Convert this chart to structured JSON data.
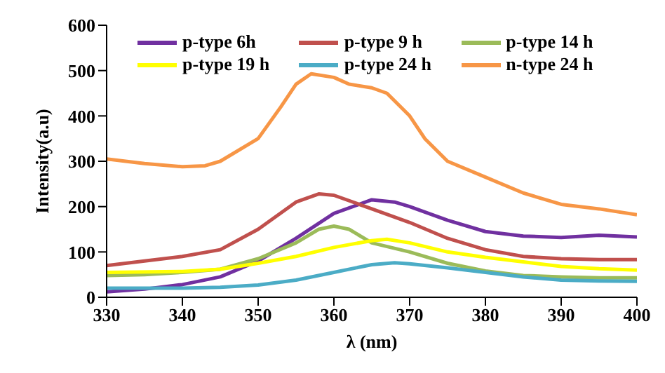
{
  "chart_data": {
    "type": "line",
    "xlabel": "λ (nm)",
    "ylabel": "Intensity(a.u)",
    "xlim": [
      330,
      400
    ],
    "xticks": [
      330,
      340,
      350,
      360,
      370,
      380,
      390,
      400
    ],
    "ylim": [
      0,
      600
    ],
    "yticks": [
      0,
      100,
      200,
      300,
      400,
      500,
      600
    ],
    "legend": "top",
    "grid": false,
    "marker": "none",
    "line_style": "solid",
    "series": [
      {
        "name": "p-type 6h",
        "color": "#7030a0",
        "x": [
          330,
          335,
          340,
          345,
          350,
          355,
          360,
          365,
          368,
          370,
          375,
          380,
          385,
          390,
          395,
          400
        ],
        "values": [
          12,
          18,
          28,
          45,
          80,
          130,
          185,
          215,
          210,
          200,
          170,
          145,
          135,
          132,
          137,
          133
        ]
      },
      {
        "name": "p-type 9 h",
        "color": "#c0504d",
        "x": [
          330,
          335,
          340,
          345,
          350,
          355,
          358,
          360,
          365,
          370,
          375,
          380,
          385,
          390,
          395,
          400
        ],
        "values": [
          70,
          80,
          90,
          105,
          150,
          210,
          228,
          225,
          195,
          165,
          130,
          105,
          90,
          85,
          83,
          83
        ]
      },
      {
        "name": "p-type 14 h",
        "color": "#9bbb59",
        "x": [
          330,
          335,
          340,
          345,
          350,
          355,
          358,
          360,
          362,
          365,
          370,
          375,
          380,
          385,
          390,
          395,
          400
        ],
        "values": [
          48,
          50,
          55,
          62,
          85,
          120,
          150,
          157,
          150,
          120,
          100,
          75,
          58,
          48,
          45,
          43,
          43
        ]
      },
      {
        "name": "p-type 19 h",
        "color": "#ffff00",
        "x": [
          330,
          340,
          345,
          350,
          355,
          360,
          365,
          367,
          370,
          375,
          380,
          385,
          390,
          395,
          400
        ],
        "values": [
          55,
          57,
          62,
          75,
          90,
          110,
          125,
          128,
          120,
          100,
          88,
          78,
          68,
          63,
          60
        ]
      },
      {
        "name": "p-type 24 h",
        "color": "#4bacc6",
        "x": [
          330,
          340,
          345,
          350,
          355,
          360,
          365,
          368,
          370,
          375,
          380,
          385,
          390,
          395,
          400
        ],
        "values": [
          20,
          20,
          22,
          27,
          38,
          55,
          72,
          76,
          74,
          65,
          55,
          45,
          38,
          36,
          35
        ]
      },
      {
        "name": "n-type 24 h",
        "color": "#f79646",
        "x": [
          330,
          335,
          340,
          343,
          345,
          350,
          353,
          355,
          357,
          360,
          362,
          365,
          367,
          370,
          372,
          375,
          380,
          385,
          390,
          395,
          400
        ],
        "values": [
          305,
          295,
          288,
          290,
          300,
          350,
          420,
          470,
          493,
          485,
          470,
          462,
          450,
          400,
          350,
          300,
          265,
          230,
          205,
          195,
          182
        ]
      }
    ]
  }
}
